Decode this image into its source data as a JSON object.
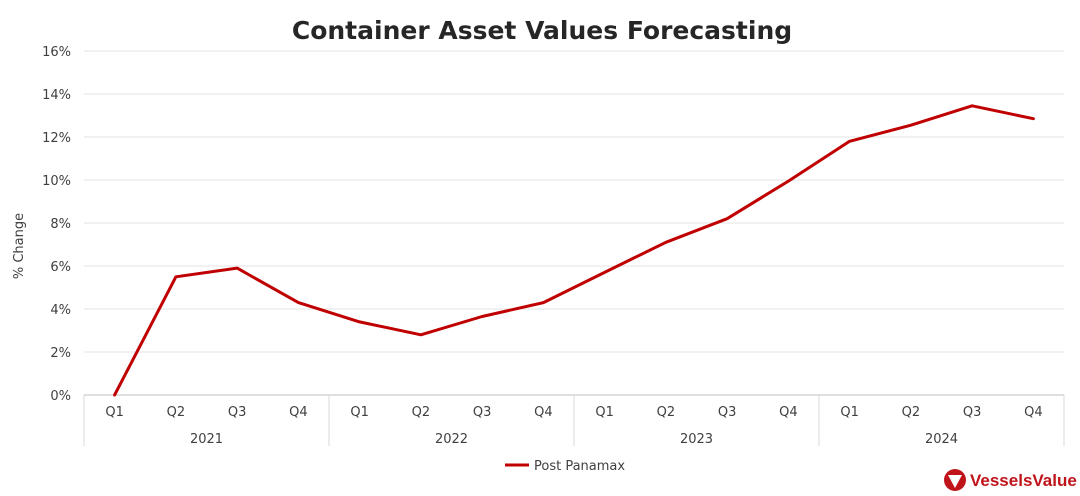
{
  "brand": {
    "name": "VesselsValue",
    "color": "#c0141b",
    "icon": "vesselsvalue-logo-icon"
  },
  "chart_data": {
    "type": "line",
    "title": "Container Asset Values Forecasting",
    "ylabel": "% Change",
    "xlabel": "",
    "ylim": [
      0,
      16
    ],
    "yticks": [
      "0%",
      "2%",
      "4%",
      "6%",
      "8%",
      "10%",
      "12%",
      "14%",
      "16%"
    ],
    "ytick_values": [
      0,
      2,
      4,
      6,
      8,
      10,
      12,
      14,
      16
    ],
    "groups": [
      {
        "label": "2021",
        "categories": [
          "Q1",
          "Q2",
          "Q3",
          "Q4"
        ]
      },
      {
        "label": "2022",
        "categories": [
          "Q1",
          "Q2",
          "Q3",
          "Q4"
        ]
      },
      {
        "label": "2023",
        "categories": [
          "Q1",
          "Q2",
          "Q3",
          "Q4"
        ]
      },
      {
        "label": "2024",
        "categories": [
          "Q1",
          "Q2",
          "Q3",
          "Q4"
        ]
      }
    ],
    "series": [
      {
        "name": "Post Panamax",
        "color": "#c00000",
        "values": [
          0,
          5.5,
          5.9,
          4.3,
          3.4,
          2.8,
          3.65,
          4.3,
          5.7,
          7.1,
          8.2,
          9.95,
          11.8,
          12.55,
          13.45,
          12.85
        ]
      }
    ],
    "grid": true,
    "legend_position": "bottom-center"
  }
}
